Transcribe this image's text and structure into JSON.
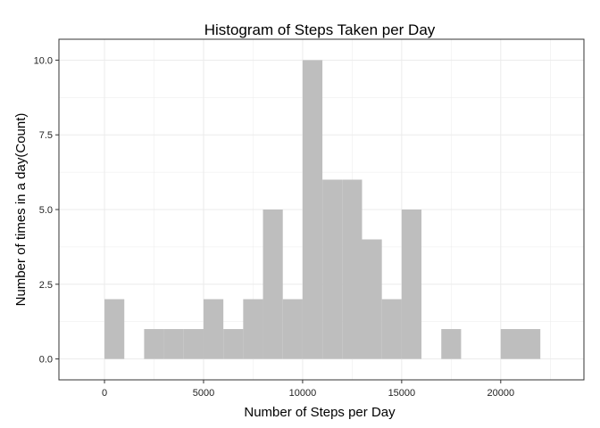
{
  "chart_data": {
    "type": "bar",
    "title": "Histogram of Steps Taken per Day",
    "xlabel": "Number of Steps per Day",
    "ylabel": "Number of times in a day(Count)",
    "xlim": [
      -2300,
      24200
    ],
    "ylim": [
      -0.7,
      10.7
    ],
    "x_ticks": [
      0,
      5000,
      10000,
      15000,
      20000
    ],
    "x_tick_labels": [
      "0",
      "5000",
      "10000",
      "15000",
      "20000"
    ],
    "y_ticks": [
      0,
      2.5,
      5,
      7.5,
      10
    ],
    "y_tick_labels": [
      "0.0",
      "2.5",
      "5.0",
      "7.5",
      "10.0"
    ],
    "bin_width": 1000,
    "bins": [
      {
        "start": 0,
        "end": 1000,
        "count": 2
      },
      {
        "start": 1000,
        "end": 2000,
        "count": 0
      },
      {
        "start": 2000,
        "end": 3000,
        "count": 1
      },
      {
        "start": 3000,
        "end": 4000,
        "count": 1
      },
      {
        "start": 4000,
        "end": 5000,
        "count": 1
      },
      {
        "start": 5000,
        "end": 6000,
        "count": 2
      },
      {
        "start": 6000,
        "end": 7000,
        "count": 1
      },
      {
        "start": 7000,
        "end": 8000,
        "count": 2
      },
      {
        "start": 8000,
        "end": 9000,
        "count": 5
      },
      {
        "start": 9000,
        "end": 10000,
        "count": 2
      },
      {
        "start": 10000,
        "end": 11000,
        "count": 10
      },
      {
        "start": 11000,
        "end": 12000,
        "count": 6
      },
      {
        "start": 12000,
        "end": 13000,
        "count": 6
      },
      {
        "start": 13000,
        "end": 14000,
        "count": 4
      },
      {
        "start": 14000,
        "end": 15000,
        "count": 2
      },
      {
        "start": 15000,
        "end": 16000,
        "count": 5
      },
      {
        "start": 16000,
        "end": 17000,
        "count": 0
      },
      {
        "start": 17000,
        "end": 18000,
        "count": 1
      },
      {
        "start": 18000,
        "end": 19000,
        "count": 0
      },
      {
        "start": 19000,
        "end": 20000,
        "count": 0
      },
      {
        "start": 20000,
        "end": 21000,
        "count": 1
      },
      {
        "start": 21000,
        "end": 22000,
        "count": 1
      }
    ],
    "grid": true,
    "bar_color": "#bebebe",
    "grid_color": "#ebebeb",
    "panel_border_color": "#333333"
  }
}
